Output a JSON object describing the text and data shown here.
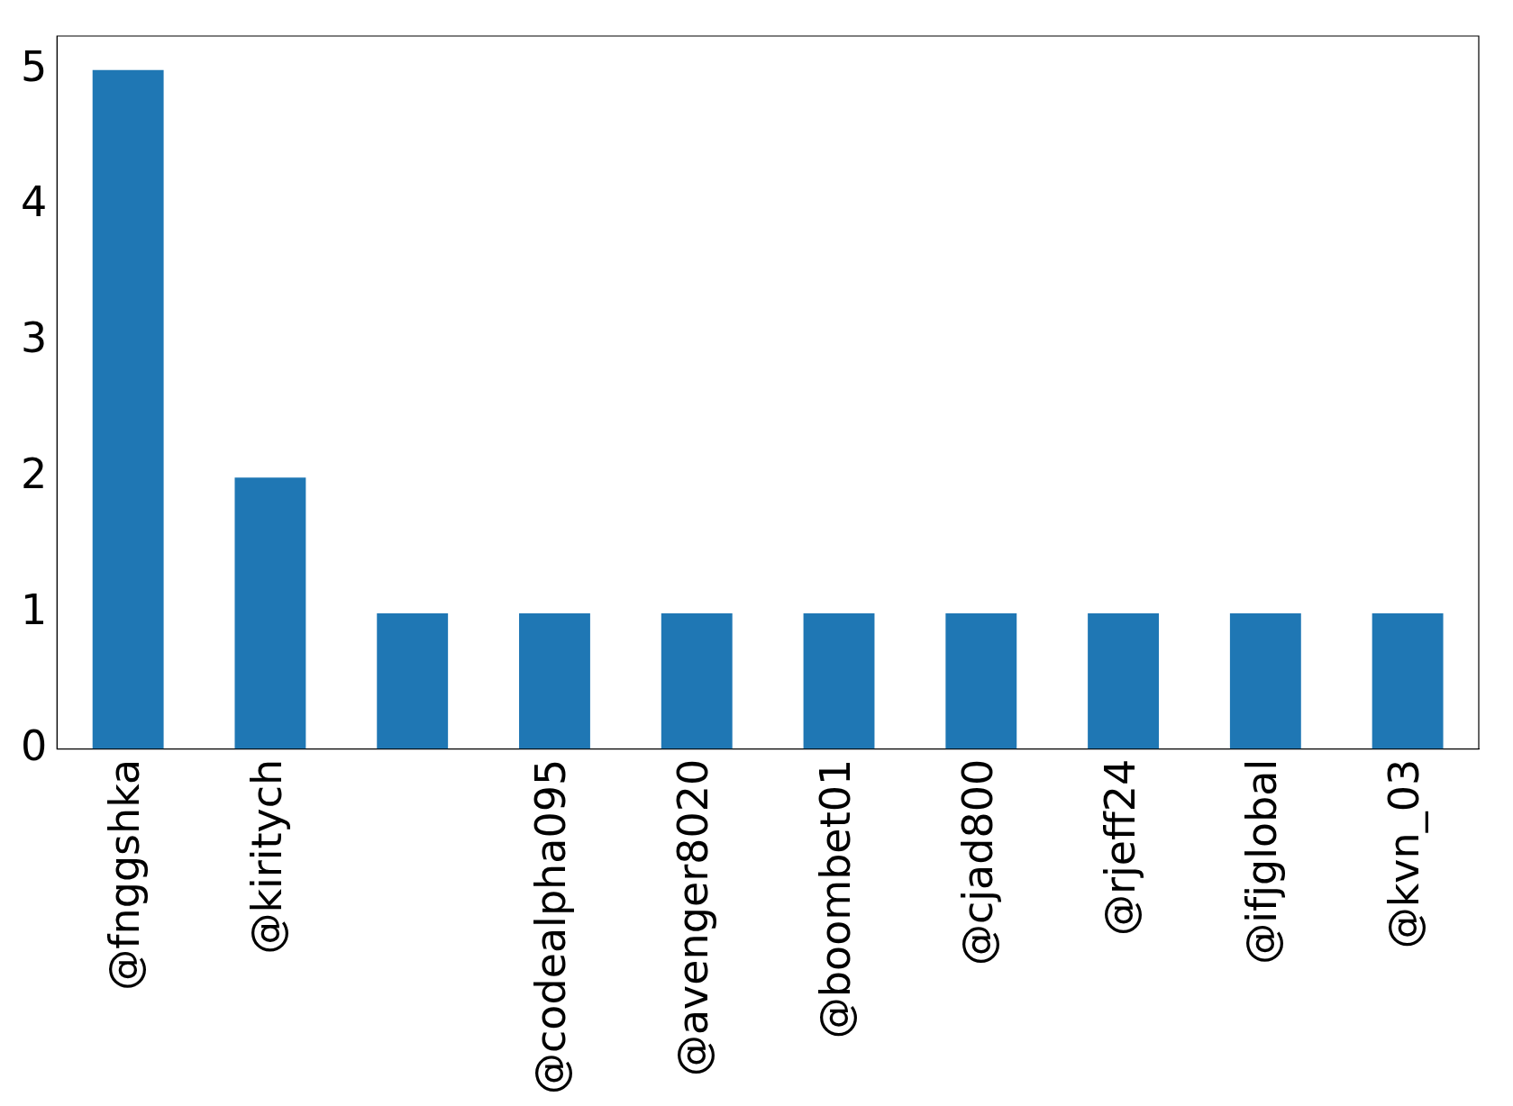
{
  "chart_data": {
    "type": "bar",
    "categories": [
      "@fnggshka",
      "@kiritych",
      null,
      "@codealpha095",
      "@avenger8020",
      "@boombet01",
      "@cjad800",
      "@rjeff24",
      "@ifjglobal",
      "@kvn_03"
    ],
    "values": [
      5,
      2,
      1,
      1,
      1,
      1,
      1,
      1,
      1,
      1
    ],
    "color": "#1f77b4",
    "ylim": [
      0,
      5.25
    ],
    "yticks": [
      0,
      1,
      2,
      3,
      4,
      5
    ],
    "grid": false,
    "legend": false
  }
}
